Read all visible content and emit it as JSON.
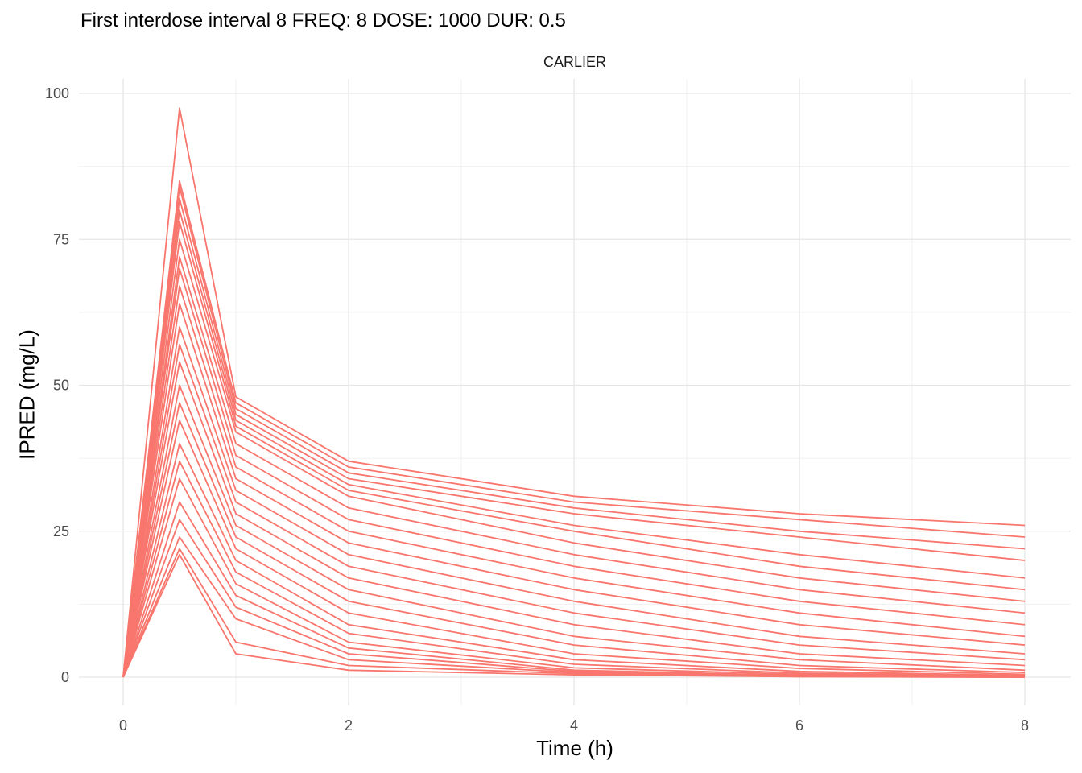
{
  "chart_data": {
    "type": "line",
    "title": "First interdose interval 8 FREQ: 8 DOSE: 1000 DUR: 0.5",
    "facet": "CARLIER",
    "xlabel": "Time (h)",
    "ylabel": "IPRED (mg/L)",
    "xlim": [
      0,
      8
    ],
    "ylim": [
      0,
      100
    ],
    "x_ticks": [
      "0",
      "2",
      "4",
      "6",
      "8"
    ],
    "y_ticks": [
      "0",
      "25",
      "50",
      "75",
      "100"
    ],
    "grid": true,
    "legend": "none",
    "line_color": "#F8766D",
    "series": [
      {
        "x": [
          0,
          0.5,
          1,
          2,
          4,
          6,
          8
        ],
        "y": [
          0,
          97.5,
          48,
          37,
          31,
          28,
          26
        ]
      },
      {
        "x": [
          0,
          0.5,
          1,
          2,
          4,
          6,
          8
        ],
        "y": [
          0,
          85,
          47,
          36,
          30,
          27,
          24
        ]
      },
      {
        "x": [
          0,
          0.5,
          1,
          2,
          4,
          6,
          8
        ],
        "y": [
          0,
          84,
          46,
          35,
          29,
          25,
          22
        ]
      },
      {
        "x": [
          0,
          0.5,
          1,
          2,
          4,
          6,
          8
        ],
        "y": [
          0,
          82,
          45,
          34,
          28,
          24,
          20
        ]
      },
      {
        "x": [
          0,
          0.5,
          1,
          2,
          4,
          6,
          8
        ],
        "y": [
          0,
          80,
          44,
          33,
          26,
          21,
          17
        ]
      },
      {
        "x": [
          0,
          0.5,
          1,
          2,
          4,
          6,
          8
        ],
        "y": [
          0,
          78,
          43,
          32,
          25,
          19,
          15
        ]
      },
      {
        "x": [
          0,
          0.5,
          1,
          2,
          4,
          6,
          8
        ],
        "y": [
          0,
          75,
          42,
          31,
          23,
          17,
          13
        ]
      },
      {
        "x": [
          0,
          0.5,
          1,
          2,
          4,
          6,
          8
        ],
        "y": [
          0,
          72,
          40,
          29,
          21,
          15,
          11
        ]
      },
      {
        "x": [
          0,
          0.5,
          1,
          2,
          4,
          6,
          8
        ],
        "y": [
          0,
          70,
          38,
          27,
          19,
          13,
          9
        ]
      },
      {
        "x": [
          0,
          0.5,
          1,
          2,
          4,
          6,
          8
        ],
        "y": [
          0,
          67,
          36,
          25,
          17,
          11,
          7
        ]
      },
      {
        "x": [
          0,
          0.5,
          1,
          2,
          4,
          6,
          8
        ],
        "y": [
          0,
          64,
          34,
          23,
          15,
          9,
          5.5
        ]
      },
      {
        "x": [
          0,
          0.5,
          1,
          2,
          4,
          6,
          8
        ],
        "y": [
          0,
          60,
          32,
          21,
          13,
          7,
          4
        ]
      },
      {
        "x": [
          0,
          0.5,
          1,
          2,
          4,
          6,
          8
        ],
        "y": [
          0,
          57,
          30,
          19,
          11,
          5.5,
          3
        ]
      },
      {
        "x": [
          0,
          0.5,
          1,
          2,
          4,
          6,
          8
        ],
        "y": [
          0,
          54,
          28,
          17,
          9,
          4,
          2
        ]
      },
      {
        "x": [
          0,
          0.5,
          1,
          2,
          4,
          6,
          8
        ],
        "y": [
          0,
          50,
          26,
          15,
          7,
          3,
          1.2
        ]
      },
      {
        "x": [
          0,
          0.5,
          1,
          2,
          4,
          6,
          8
        ],
        "y": [
          0,
          47,
          24,
          13,
          5.5,
          2,
          0.8
        ]
      },
      {
        "x": [
          0,
          0.5,
          1,
          2,
          4,
          6,
          8
        ],
        "y": [
          0,
          44,
          22,
          11,
          4,
          1.5,
          0.5
        ]
      },
      {
        "x": [
          0,
          0.5,
          1,
          2,
          4,
          6,
          8
        ],
        "y": [
          0,
          40,
          20,
          9,
          3,
          1,
          0.3
        ]
      },
      {
        "x": [
          0,
          0.5,
          1,
          2,
          4,
          6,
          8
        ],
        "y": [
          0,
          37,
          18,
          7.5,
          2.2,
          0.7,
          0.2
        ]
      },
      {
        "x": [
          0,
          0.5,
          1,
          2,
          4,
          6,
          8
        ],
        "y": [
          0,
          34,
          16,
          6,
          1.6,
          0.5,
          0.1
        ]
      },
      {
        "x": [
          0,
          0.5,
          1,
          2,
          4,
          6,
          8
        ],
        "y": [
          0,
          30,
          14,
          5,
          1.2,
          0.3,
          0.1
        ]
      },
      {
        "x": [
          0,
          0.5,
          1,
          2,
          4,
          6,
          8
        ],
        "y": [
          0,
          27,
          12,
          4,
          1,
          0.2,
          0
        ]
      },
      {
        "x": [
          0,
          0.5,
          1,
          2,
          4,
          6,
          8
        ],
        "y": [
          0,
          24,
          10,
          3,
          0.8,
          0.2,
          0
        ]
      },
      {
        "x": [
          0,
          0.5,
          1,
          2,
          4,
          6,
          8
        ],
        "y": [
          0,
          22,
          6,
          2,
          0.6,
          0.1,
          0
        ]
      },
      {
        "x": [
          0,
          0.5,
          1,
          2,
          4,
          6,
          8
        ],
        "y": [
          0,
          21,
          4,
          1.2,
          0.4,
          0.1,
          0
        ]
      }
    ]
  }
}
